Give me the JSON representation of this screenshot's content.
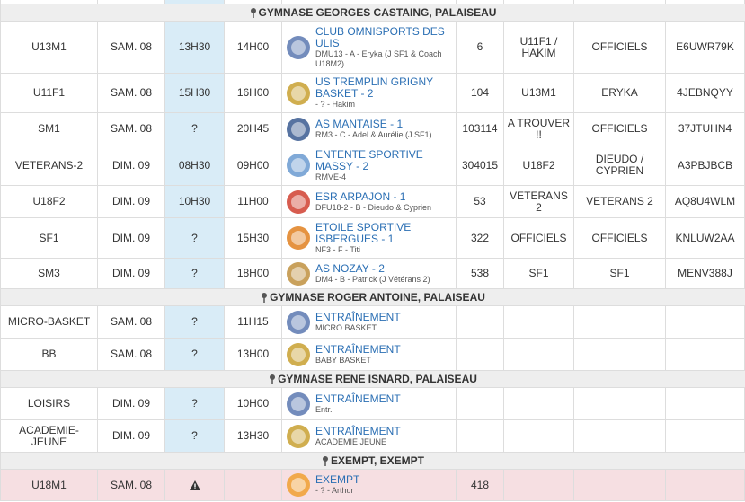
{
  "sections": [
    {
      "title": "GYMNASE GEORGES CASTAING, PALAISEAU",
      "rows": [
        {
          "team": "U13M1",
          "day": "SAM. 08",
          "meet": "13H30",
          "start": "14H00",
          "opponent": "CLUB OMNISPORTS DES ULIS",
          "detail": "DMU13 - A - Eryka (J SF1 & Coach U18M2)",
          "number": "6",
          "col7": "U11F1 / HAKIM",
          "col8": "OFFICIELS",
          "code": "E6UWR79K"
        },
        {
          "team": "U11F1",
          "day": "SAM. 08",
          "meet": "15H30",
          "start": "16H00",
          "opponent": "US TREMPLIN GRIGNY BASKET - 2",
          "detail": "- ? - Hakim",
          "number": "104",
          "col7": "U13M1",
          "col8": "ERYKA",
          "code": "4JEBNQYY"
        },
        {
          "team": "SM1",
          "day": "SAM. 08",
          "meet": "?",
          "start": "20H45",
          "opponent": "AS MANTAISE - 1",
          "detail": "RM3 - C - Adel & Aurélie (J SF1)",
          "number": "103114",
          "col7": "A TROUVER !!",
          "col8": "OFFICIELS",
          "code": "37JTUHN4"
        },
        {
          "team": "VETERANS-2",
          "day": "DIM. 09",
          "meet": "08H30",
          "start": "09H00",
          "opponent": "ENTENTE SPORTIVE MASSY - 2",
          "detail": "RMVE-4",
          "number": "304015",
          "col7": "U18F2",
          "col8": "DIEUDO / CYPRIEN",
          "code": "A3PBJBCB"
        },
        {
          "team": "U18F2",
          "day": "DIM. 09",
          "meet": "10H30",
          "start": "11H00",
          "opponent": "ESR ARPAJON - 1",
          "detail": "DFU18-2 - B - Dieudo & Cyprien",
          "number": "53",
          "col7": "VETERANS 2",
          "col8": "VETERANS 2",
          "code": "AQ8U4WLM"
        },
        {
          "team": "SF1",
          "day": "DIM. 09",
          "meet": "?",
          "start": "15H30",
          "opponent": "ETOILE SPORTIVE ISBERGUES - 1",
          "detail": "NF3 - F - Titi",
          "number": "322",
          "col7": "OFFICIELS",
          "col8": "OFFICIELS",
          "code": "KNLUW2AA"
        },
        {
          "team": "SM3",
          "day": "DIM. 09",
          "meet": "?",
          "start": "18H00",
          "opponent": "AS NOZAY - 2",
          "detail": "DM4 - B - Patrick (J Vétérans 2)",
          "number": "538",
          "col7": "SF1",
          "col8": "SF1",
          "code": "MENV388J"
        }
      ]
    },
    {
      "title": "GYMNASE ROGER ANTOINE, PALAISEAU",
      "rows": [
        {
          "team": "MICRO-BASKET",
          "day": "SAM. 08",
          "meet": "?",
          "start": "11H15",
          "opponent": "ENTRAÎNEMENT",
          "detail": "MICRO BASKET"
        },
        {
          "team": "BB",
          "day": "SAM. 08",
          "meet": "?",
          "start": "13H00",
          "opponent": "ENTRAÎNEMENT",
          "detail": "BABY BASKET"
        }
      ]
    },
    {
      "title": "GYMNASE RENE ISNARD, PALAISEAU",
      "rows": [
        {
          "team": "LOISIRS",
          "day": "DIM. 09",
          "meet": "?",
          "start": "10H00",
          "opponent": "ENTRAÎNEMENT",
          "detail": "Entr."
        },
        {
          "team": "ACADEMIE-JEUNE",
          "day": "DIM. 09",
          "meet": "?",
          "start": "13H30",
          "opponent": "ENTRAÎNEMENT",
          "detail": "ACADEMIE JEUNE"
        }
      ]
    },
    {
      "title": "EXEMPT, EXEMPT",
      "rows": [
        {
          "team": "U18M1",
          "day": "SAM. 08",
          "opponent": "EXEMPT",
          "detail": "- ? - Arthur",
          "number": "418"
        }
      ]
    }
  ]
}
